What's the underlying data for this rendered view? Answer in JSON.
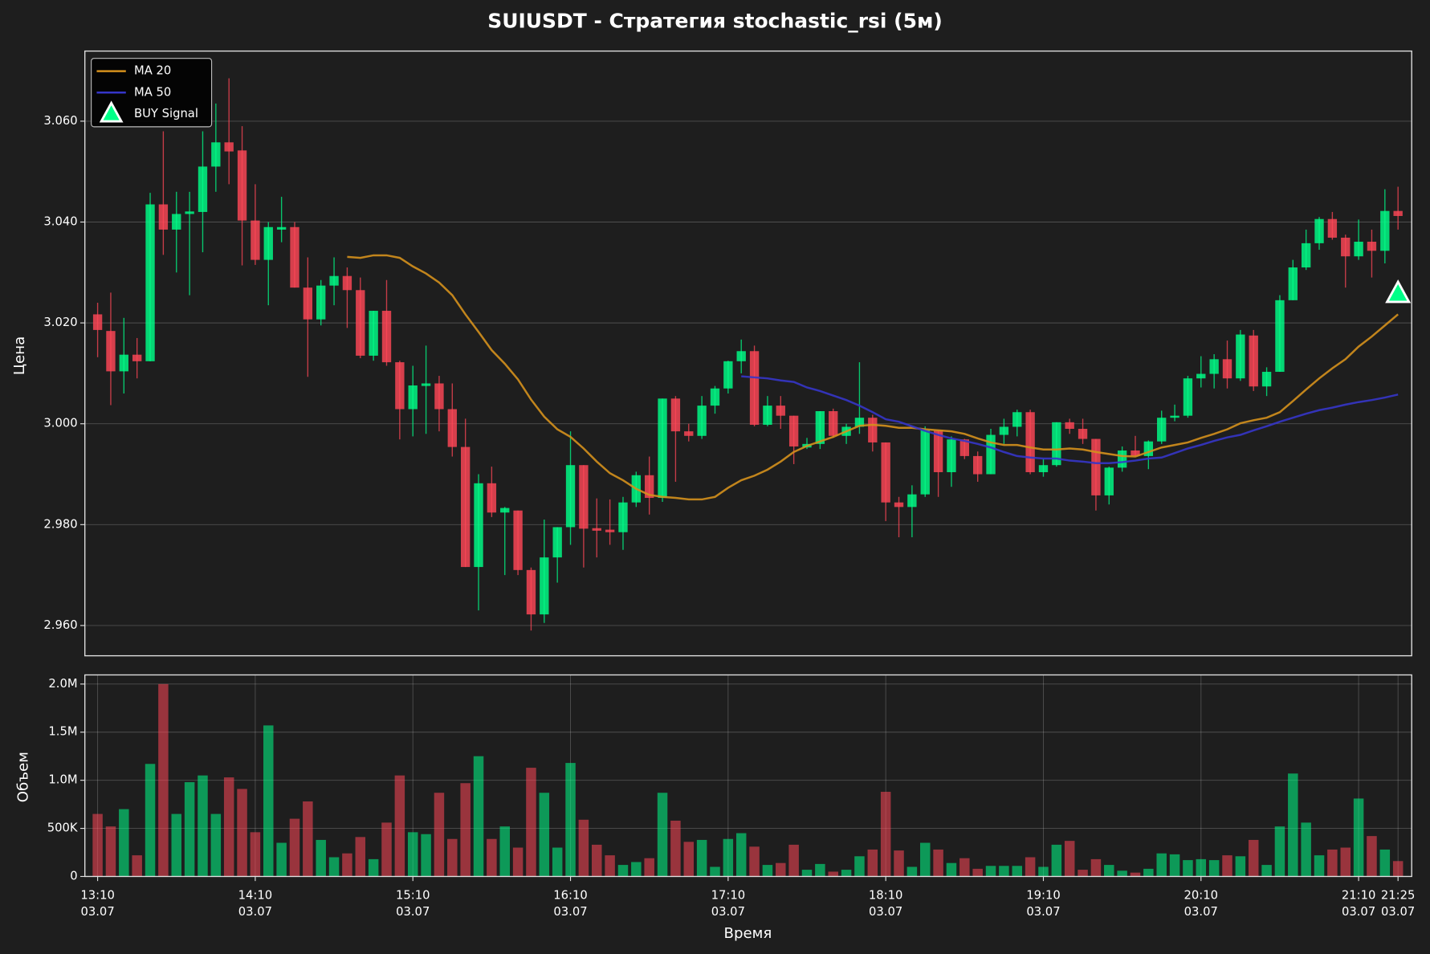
{
  "chart_data": [
    {
      "type": "candlestick",
      "title": "SUIUSDT - Стратегия stochastic_rsi (5м)",
      "ylabel": "Цена",
      "ylim": [
        2.954,
        3.0739
      ],
      "yticks": [
        {
          "value": 2.96,
          "label": "2.960"
        },
        {
          "value": 2.98,
          "label": "2.980"
        },
        {
          "value": 3.0,
          "label": "3.000"
        },
        {
          "value": 3.02,
          "label": "3.020"
        },
        {
          "value": 3.04,
          "label": "3.040"
        },
        {
          "value": 3.06,
          "label": "3.060"
        }
      ],
      "grid": "y",
      "legend": "upper left",
      "up_color": "#00ff88",
      "down_color": "#ff4757",
      "open": [
        3.0217,
        3.0184,
        3.0104,
        3.0137,
        3.0124,
        3.0435,
        3.0385,
        3.0416,
        3.042,
        3.051,
        3.0558,
        3.0542,
        3.0403,
        3.0325,
        3.0385,
        3.039,
        3.027,
        3.0207,
        3.0274,
        3.0293,
        3.0265,
        3.0135,
        3.0224,
        3.0122,
        3.0029,
        3.0075,
        3.008,
        3.0029,
        2.9954,
        2.9716,
        2.9882,
        2.9824,
        2.9828,
        2.971,
        2.9622,
        2.9735,
        2.9795,
        2.9918,
        2.9793,
        2.979,
        2.9785,
        2.9844,
        2.9898,
        2.9853,
        3.005,
        2.9985,
        2.9976,
        3.0036,
        3.007,
        3.0124,
        3.0144,
        2.9998,
        3.0036,
        3.0016,
        2.9953,
        2.996,
        3.0025,
        2.9976,
        2.9994,
        3.0012,
        2.9963,
        2.9844,
        2.9835,
        2.986,
        2.9987,
        2.9904,
        2.9969,
        2.9936,
        2.99,
        2.9978,
        2.9994,
        3.0023,
        2.9904,
        2.9918,
        3.0003,
        2.999,
        2.997,
        2.9858,
        2.9913,
        2.9947,
        2.9936,
        2.9965,
        3.0012,
        3.0016,
        3.009,
        3.0099,
        3.0128,
        3.009,
        3.0175,
        3.0074,
        3.0103,
        3.0245,
        3.031,
        3.0358,
        3.0406,
        3.0369,
        3.0332,
        3.0361,
        3.0343,
        3.0422
      ],
      "high": [
        3.024,
        3.026,
        3.021,
        3.017,
        3.0458,
        3.058,
        3.046,
        3.046,
        3.058,
        3.0635,
        3.0685,
        3.059,
        3.0475,
        3.04,
        3.045,
        3.04,
        3.033,
        3.0285,
        3.033,
        3.031,
        3.029,
        3.0224,
        3.0285,
        3.0125,
        3.0115,
        3.0155,
        3.0095,
        3.008,
        3.001,
        2.99,
        2.9915,
        2.9835,
        2.9828,
        2.9715,
        2.981,
        2.9795,
        2.9985,
        2.9918,
        2.9852,
        2.985,
        2.9855,
        2.9905,
        2.9935,
        3.005,
        3.0055,
        3.0,
        3.0055,
        3.0075,
        3.0125,
        3.0167,
        3.0155,
        3.0055,
        3.0055,
        3.0016,
        2.9972,
        3.0025,
        3.003,
        3.0,
        3.0122,
        3.0018,
        2.9963,
        2.9855,
        2.9878,
        2.9995,
        2.9987,
        2.9975,
        2.997,
        2.9945,
        2.999,
        3.001,
        3.0028,
        3.0028,
        2.993,
        3.0003,
        3.001,
        3.001,
        2.997,
        2.9915,
        2.9955,
        2.9976,
        2.9967,
        3.0026,
        3.0038,
        3.0095,
        3.0134,
        3.0138,
        3.0165,
        3.0186,
        3.0186,
        3.0112,
        3.0255,
        3.0325,
        3.0385,
        3.041,
        3.042,
        3.0375,
        3.0405,
        3.0385,
        3.0465,
        3.047
      ],
      "low": [
        3.0132,
        3.0037,
        3.006,
        3.009,
        3.0124,
        3.0335,
        3.03,
        3.0255,
        3.034,
        3.046,
        3.0475,
        3.0314,
        3.0315,
        3.0235,
        3.036,
        3.027,
        3.0093,
        3.0195,
        3.0235,
        3.019,
        3.013,
        3.0125,
        3.0115,
        2.9969,
        2.9975,
        2.998,
        2.9985,
        2.9935,
        2.9716,
        2.963,
        2.9815,
        2.97,
        2.97,
        2.959,
        2.9605,
        2.9685,
        2.976,
        2.9715,
        2.9735,
        2.976,
        2.975,
        2.9835,
        2.982,
        2.9845,
        2.9885,
        2.9965,
        2.997,
        3.002,
        3.006,
        3.01,
        2.9995,
        2.9995,
        2.999,
        2.992,
        2.995,
        2.995,
        2.9972,
        2.996,
        2.998,
        2.9945,
        2.9807,
        2.9775,
        2.9775,
        2.9855,
        2.9855,
        2.9875,
        2.993,
        2.9885,
        2.99,
        2.996,
        2.9975,
        2.99,
        2.9895,
        2.9915,
        2.998,
        2.996,
        2.9828,
        2.984,
        2.9905,
        2.9935,
        2.991,
        2.996,
        3.0005,
        3.0012,
        3.0072,
        3.007,
        3.007,
        3.0085,
        3.0065,
        3.0055,
        3.0103,
        3.0245,
        3.0305,
        3.0345,
        3.0365,
        3.027,
        3.0325,
        3.029,
        3.0318,
        3.0385
      ],
      "close": [
        3.0186,
        3.0104,
        3.0137,
        3.0124,
        3.0435,
        3.0385,
        3.0416,
        3.0421,
        3.051,
        3.0558,
        3.054,
        3.0403,
        3.0325,
        3.039,
        3.039,
        3.027,
        3.0207,
        3.0274,
        3.0293,
        3.0265,
        3.0135,
        3.0224,
        3.0122,
        3.0029,
        3.0076,
        3.008,
        3.0029,
        2.9954,
        2.9716,
        2.9882,
        2.9824,
        2.9833,
        2.971,
        2.9622,
        2.9735,
        2.9795,
        2.9918,
        2.9792,
        2.9788,
        2.9785,
        2.9844,
        2.9898,
        2.9853,
        3.005,
        2.9985,
        2.9976,
        3.0036,
        3.007,
        3.0124,
        3.0144,
        2.9998,
        3.0036,
        3.0016,
        2.9955,
        2.996,
        3.0025,
        2.9976,
        2.9994,
        3.0012,
        2.9963,
        2.9844,
        2.9835,
        2.986,
        2.9987,
        2.9904,
        2.9969,
        2.9936,
        2.99,
        2.9978,
        2.9994,
        3.0023,
        2.9904,
        2.9918,
        3.0003,
        2.999,
        2.997,
        2.9858,
        2.9913,
        2.9947,
        2.9936,
        2.9965,
        3.0012,
        3.0016,
        3.009,
        3.0099,
        3.0128,
        3.009,
        3.0177,
        3.0074,
        3.0103,
        3.0245,
        3.031,
        3.0358,
        3.0406,
        3.0369,
        3.0332,
        3.0361,
        3.0343,
        3.0422,
        3.0412
      ],
      "series": [
        {
          "name": "MA 20",
          "color": "#d4901c",
          "values": [
            null,
            null,
            null,
            null,
            null,
            null,
            null,
            null,
            null,
            null,
            null,
            null,
            null,
            null,
            null,
            null,
            null,
            null,
            null,
            3.0331,
            3.0329,
            3.0334,
            3.0334,
            3.0329,
            3.0312,
            3.0298,
            3.028,
            3.0255,
            3.0217,
            3.0182,
            3.0146,
            3.0119,
            3.0088,
            3.0048,
            3.0014,
            2.9989,
            2.9974,
            2.9951,
            2.9925,
            2.9902,
            2.9888,
            2.9871,
            2.9859,
            2.9855,
            2.9853,
            2.985,
            2.985,
            2.9855,
            2.9873,
            2.9888,
            2.9897,
            2.9909,
            2.9925,
            2.9944,
            2.9956,
            2.9965,
            2.9974,
            2.9985,
            2.9996,
            2.9998,
            2.9996,
            2.9992,
            2.9992,
            2.9989,
            2.9987,
            2.9985,
            2.998,
            2.9971,
            2.9963,
            2.9958,
            2.9958,
            2.9953,
            2.9949,
            2.9949,
            2.9951,
            2.9949,
            2.9944,
            2.994,
            2.9936,
            2.9935,
            2.9944,
            2.9953,
            2.9958,
            2.9963,
            2.9972,
            2.998,
            2.9989,
            3.0001,
            3.0007,
            3.0012,
            3.0023,
            3.0045,
            3.0068,
            3.009,
            3.011,
            3.0128,
            3.0153,
            3.0173,
            3.0195,
            3.0217
          ]
        },
        {
          "name": "MA 50",
          "color": "#3535c8",
          "values": [
            null,
            null,
            null,
            null,
            null,
            null,
            null,
            null,
            null,
            null,
            null,
            null,
            null,
            null,
            null,
            null,
            null,
            null,
            null,
            null,
            null,
            null,
            null,
            null,
            null,
            null,
            null,
            null,
            null,
            null,
            null,
            null,
            null,
            null,
            null,
            null,
            null,
            null,
            null,
            null,
            null,
            null,
            null,
            null,
            null,
            null,
            null,
            null,
            null,
            3.0094,
            3.0092,
            3.009,
            3.0086,
            3.0083,
            3.0072,
            3.0065,
            3.0056,
            3.0047,
            3.0036,
            3.0023,
            3.0009,
            3.0004,
            2.9995,
            2.9986,
            2.9978,
            2.9971,
            2.9966,
            2.996,
            2.9953,
            2.9944,
            2.9936,
            2.9933,
            2.9931,
            2.9931,
            2.9927,
            2.9925,
            2.9922,
            2.9922,
            2.9924,
            2.9927,
            2.9931,
            2.9933,
            2.9942,
            2.9951,
            2.9958,
            2.9966,
            2.9973,
            2.9978,
            2.9987,
            2.9995,
            3.0004,
            3.0012,
            3.002,
            3.0027,
            3.0032,
            3.0038,
            3.0043,
            3.0047,
            3.0052,
            3.0058
          ]
        }
      ],
      "signals": {
        "name": "BUY Signal",
        "color": "#00ff88",
        "values": [
          null,
          null,
          null,
          null,
          null,
          null,
          null,
          null,
          null,
          null,
          null,
          null,
          null,
          null,
          null,
          null,
          null,
          null,
          null,
          null,
          null,
          null,
          null,
          null,
          null,
          null,
          null,
          null,
          null,
          null,
          null,
          null,
          null,
          null,
          null,
          null,
          null,
          null,
          null,
          null,
          null,
          null,
          null,
          null,
          null,
          null,
          null,
          null,
          null,
          null,
          null,
          null,
          null,
          null,
          null,
          null,
          null,
          null,
          null,
          null,
          null,
          null,
          null,
          null,
          null,
          null,
          null,
          null,
          null,
          null,
          null,
          null,
          null,
          null,
          null,
          null,
          null,
          null,
          null,
          null,
          null,
          null,
          null,
          null,
          null,
          null,
          null,
          null,
          null,
          null,
          null,
          null,
          null,
          null,
          null,
          null,
          null,
          null,
          null,
          3.0258
        ]
      }
    },
    {
      "type": "bar",
      "ylabel": "Объем",
      "xlabel": "Время",
      "ylim": [
        0,
        2095000
      ],
      "yticks": [
        0,
        {
          "value": 500000,
          "label": "500K"
        },
        {
          "value": 1000000,
          "label": "1.0M"
        },
        {
          "value": 1500000,
          "label": "1.5M"
        },
        {
          "value": 2000000,
          "label": "2.0M"
        }
      ],
      "grid": "both",
      "categories": [
        [
          "13:10",
          "03.07"
        ],
        null,
        null,
        null,
        null,
        null,
        null,
        null,
        null,
        null,
        null,
        null,
        [
          "14:10",
          "03.07"
        ],
        null,
        null,
        null,
        null,
        null,
        null,
        null,
        null,
        null,
        null,
        null,
        [
          "15:10",
          "03.07"
        ],
        null,
        null,
        null,
        null,
        null,
        null,
        null,
        null,
        null,
        null,
        null,
        [
          "16:10",
          "03.07"
        ],
        null,
        null,
        null,
        null,
        null,
        null,
        null,
        null,
        null,
        null,
        null,
        [
          "17:10",
          "03.07"
        ],
        null,
        null,
        null,
        null,
        null,
        null,
        null,
        null,
        null,
        null,
        null,
        [
          "18:10",
          "03.07"
        ],
        null,
        null,
        null,
        null,
        null,
        null,
        null,
        null,
        null,
        null,
        null,
        [
          "19:10",
          "03.07"
        ],
        null,
        null,
        null,
        null,
        null,
        null,
        null,
        null,
        null,
        null,
        null,
        [
          "20:10",
          "03.07"
        ],
        null,
        null,
        null,
        null,
        null,
        null,
        null,
        null,
        null,
        null,
        null,
        [
          "21:10",
          "03.07"
        ],
        null,
        null,
        [
          "21:25",
          "03.07"
        ]
      ],
      "values": [
        650000,
        520000,
        700000,
        220000,
        1170000,
        2000000,
        650000,
        980000,
        1050000,
        650000,
        1030000,
        910000,
        460000,
        1570000,
        350000,
        600000,
        780000,
        380000,
        200000,
        240000,
        410000,
        180000,
        560000,
        1050000,
        460000,
        440000,
        870000,
        390000,
        970000,
        1250000,
        390000,
        520000,
        300000,
        1130000,
        870000,
        300000,
        1180000,
        590000,
        330000,
        220000,
        120000,
        150000,
        190000,
        870000,
        580000,
        360000,
        380000,
        100000,
        390000,
        450000,
        310000,
        120000,
        140000,
        330000,
        70000,
        130000,
        50000,
        70000,
        210000,
        280000,
        880000,
        270000,
        100000,
        350000,
        280000,
        140000,
        190000,
        80000,
        110000,
        110000,
        110000,
        200000,
        100000,
        330000,
        370000,
        70000,
        180000,
        120000,
        60000,
        40000,
        80000,
        240000,
        230000,
        170000,
        180000,
        170000,
        220000,
        210000,
        380000,
        120000,
        520000,
        1070000,
        560000,
        220000,
        280000,
        300000,
        810000,
        420000,
        280000,
        160000
      ]
    }
  ]
}
